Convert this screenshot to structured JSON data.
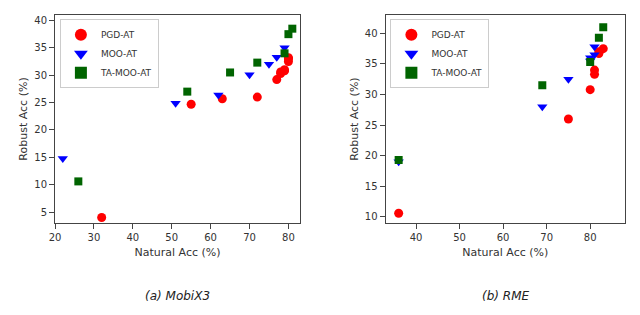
{
  "chart_data": [
    {
      "type": "scatter",
      "title": "(a) MobiX3",
      "xlabel": "Natural Acc (%)",
      "ylabel": "Robust Acc (%)",
      "xlim": [
        20,
        83
      ],
      "ylim": [
        3,
        41
      ],
      "xticks": [
        20,
        30,
        40,
        50,
        60,
        70,
        80
      ],
      "yticks": [
        5,
        10,
        15,
        20,
        25,
        30,
        35,
        40
      ],
      "grid": false,
      "legend": "upper left",
      "series": [
        {
          "name": "PGD-AT",
          "color": "#ff0000",
          "marker": "circle",
          "x": [
            32,
            55,
            63,
            72,
            77,
            78,
            78,
            79,
            79,
            80,
            80,
            80
          ],
          "values": [
            4.0,
            24.7,
            25.7,
            26.0,
            29.2,
            30.3,
            30.6,
            30.8,
            31.0,
            32.5,
            33.0,
            33.2
          ]
        },
        {
          "name": "MOO-AT",
          "color": "#0000ff",
          "marker": "triangle-down",
          "x": [
            22,
            51,
            62,
            70,
            75,
            77,
            79
          ],
          "values": [
            14.8,
            24.9,
            26.4,
            30.1,
            32.0,
            33.3,
            35.0
          ]
        },
        {
          "name": "TA-MOO-AT",
          "color": "#006400",
          "marker": "square",
          "x": [
            26,
            54,
            65,
            72,
            79,
            80,
            81
          ],
          "values": [
            10.6,
            27.0,
            30.5,
            32.3,
            34.0,
            37.5,
            38.5
          ]
        }
      ]
    },
    {
      "type": "scatter",
      "title": "(b) RME",
      "xlabel": "Natural Acc (%)",
      "ylabel": "Robust Acc (%)",
      "xlim": [
        33,
        88
      ],
      "ylim": [
        9,
        43
      ],
      "xticks": [
        40,
        50,
        60,
        70,
        80
      ],
      "yticks": [
        10,
        15,
        20,
        25,
        30,
        35,
        40
      ],
      "grid": false,
      "legend": "upper left",
      "series": [
        {
          "name": "PGD-AT",
          "color": "#ff0000",
          "marker": "circle",
          "x": [
            36,
            75,
            80,
            81,
            81,
            82,
            82,
            83
          ],
          "values": [
            10.6,
            26.0,
            30.8,
            33.3,
            34.0,
            36.7,
            37.0,
            37.5
          ]
        },
        {
          "name": "MOO-AT",
          "color": "#0000ff",
          "marker": "triangle-down",
          "x": [
            36,
            69,
            75,
            80,
            80,
            81,
            81
          ],
          "values": [
            19.0,
            28.0,
            32.5,
            35.5,
            36.0,
            36.5,
            37.8
          ]
        },
        {
          "name": "TA-MOO-AT",
          "color": "#006400",
          "marker": "square",
          "x": [
            36,
            69,
            80,
            82,
            83
          ],
          "values": [
            19.3,
            31.5,
            35.3,
            39.3,
            41.0
          ]
        }
      ]
    }
  ]
}
